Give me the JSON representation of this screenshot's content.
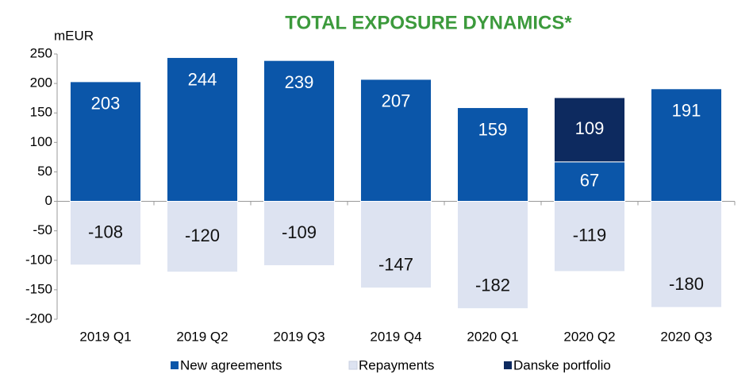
{
  "chart_data": {
    "type": "bar",
    "stacked": true,
    "title": "TOTAL EXPOSURE DYNAMICS*",
    "y_label": "mEUR",
    "categories": [
      "2019 Q1",
      "2019 Q2",
      "2019 Q3",
      "2019 Q4",
      "2020 Q1",
      "2020 Q2",
      "2020 Q3"
    ],
    "series": [
      {
        "name": "New agreements",
        "color": "#0b56a9",
        "values": [
          203,
          244,
          239,
          207,
          159,
          67,
          191
        ]
      },
      {
        "name": "Repayments",
        "color": "#dde3f1",
        "values": [
          -108,
          -120,
          -109,
          -147,
          -182,
          -119,
          -180
        ]
      },
      {
        "name": "Danske portfolio",
        "color": "#0d2a5f",
        "values": [
          null,
          null,
          null,
          null,
          null,
          109,
          null
        ]
      }
    ],
    "ylim": [
      -200,
      250
    ],
    "yticks": [
      -200,
      -150,
      -100,
      -50,
      0,
      50,
      100,
      150,
      200,
      250
    ],
    "legend": "bottom"
  }
}
